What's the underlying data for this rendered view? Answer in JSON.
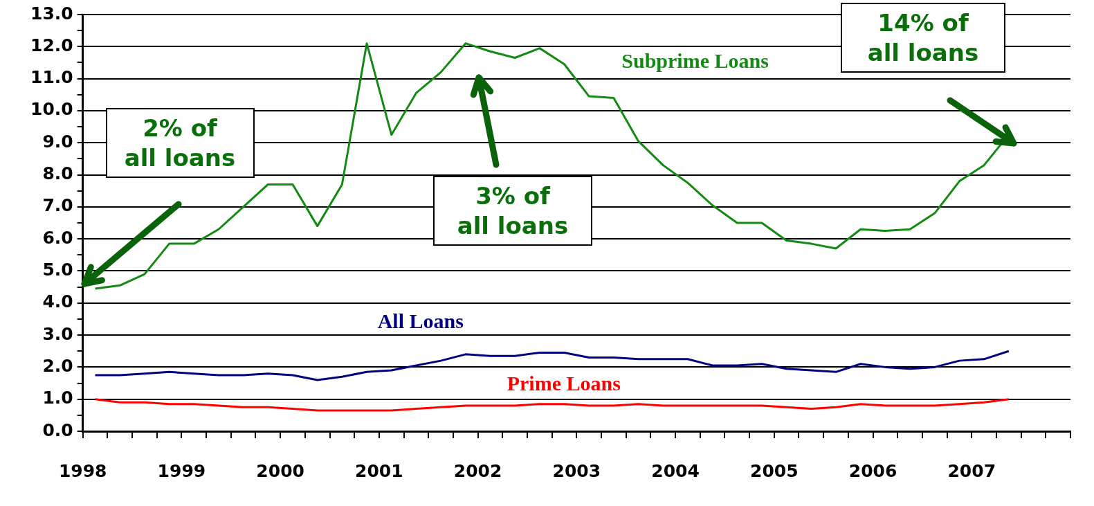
{
  "chart_data": {
    "type": "line",
    "x": [
      1998.125,
      1998.375,
      1998.625,
      1998.875,
      1999.125,
      1999.375,
      1999.625,
      1999.875,
      2000.125,
      2000.375,
      2000.625,
      2000.875,
      2001.125,
      2001.375,
      2001.625,
      2001.875,
      2002.125,
      2002.375,
      2002.625,
      2002.875,
      2003.125,
      2003.375,
      2003.625,
      2003.875,
      2004.125,
      2004.375,
      2004.625,
      2004.875,
      2005.125,
      2005.375,
      2005.625,
      2005.875,
      2006.125,
      2006.375,
      2006.625,
      2006.875,
      2007.125,
      2007.375
    ],
    "series": [
      {
        "name": "Subprime Loans",
        "color": "#138a13",
        "values": [
          4.45,
          4.55,
          4.9,
          5.85,
          5.85,
          6.3,
          7.0,
          7.7,
          7.7,
          6.4,
          7.7,
          12.1,
          9.25,
          10.55,
          11.2,
          12.1,
          11.85,
          11.65,
          11.95,
          11.45,
          10.45,
          10.4,
          9.05,
          8.3,
          7.75,
          7.05,
          6.5,
          6.5,
          5.95,
          5.85,
          5.7,
          6.3,
          6.25,
          6.3,
          6.8,
          7.8,
          8.3,
          9.25
        ]
      },
      {
        "name": "All Loans",
        "color": "#000080",
        "values": [
          1.75,
          1.75,
          1.8,
          1.85,
          1.8,
          1.75,
          1.75,
          1.8,
          1.75,
          1.6,
          1.7,
          1.85,
          1.9,
          2.05,
          2.2,
          2.4,
          2.35,
          2.35,
          2.45,
          2.45,
          2.3,
          2.3,
          2.25,
          2.25,
          2.25,
          2.05,
          2.05,
          2.1,
          1.95,
          1.9,
          1.85,
          2.1,
          2.0,
          1.95,
          2.0,
          2.2,
          2.25,
          2.5
        ]
      },
      {
        "name": "Prime Loans",
        "color": "#ff0000",
        "values": [
          1.0,
          0.9,
          0.9,
          0.85,
          0.85,
          0.8,
          0.75,
          0.75,
          0.7,
          0.65,
          0.65,
          0.65,
          0.65,
          0.7,
          0.75,
          0.8,
          0.8,
          0.8,
          0.85,
          0.85,
          0.8,
          0.8,
          0.85,
          0.8,
          0.8,
          0.8,
          0.8,
          0.8,
          0.75,
          0.7,
          0.75,
          0.85,
          0.8,
          0.8,
          0.8,
          0.85,
          0.9,
          1.0
        ]
      }
    ],
    "xlim": [
      1998,
      2008
    ],
    "xticks": [
      1998,
      {
        "value": 1998.25,
        "label": null
      },
      {
        "value": 1998.5,
        "label": null
      },
      {
        "value": 1998.75,
        "label": null
      },
      1999,
      {
        "value": 1999.25,
        "label": null
      },
      {
        "value": 1999.5,
        "label": null
      },
      {
        "value": 1999.75,
        "label": null
      },
      2000,
      {
        "value": 2000.25,
        "label": null
      },
      {
        "value": 2000.5,
        "label": null
      },
      {
        "value": 2000.75,
        "label": null
      },
      2001,
      {
        "value": 2001.25,
        "label": null
      },
      {
        "value": 2001.5,
        "label": null
      },
      {
        "value": 2001.75,
        "label": null
      },
      2002,
      {
        "value": 2002.25,
        "label": null
      },
      {
        "value": 2002.5,
        "label": null
      },
      {
        "value": 2002.75,
        "label": null
      },
      2003,
      {
        "value": 2003.25,
        "label": null
      },
      {
        "value": 2003.5,
        "label": null
      },
      {
        "value": 2003.75,
        "label": null
      },
      2004,
      {
        "value": 2004.25,
        "label": null
      },
      {
        "value": 2004.5,
        "label": null
      },
      {
        "value": 2004.75,
        "label": null
      },
      2005,
      {
        "value": 2005.25,
        "label": null
      },
      {
        "value": 2005.5,
        "label": null
      },
      {
        "value": 2005.75,
        "label": null
      },
      2006,
      {
        "value": 2006.25,
        "label": null
      },
      {
        "value": 2006.5,
        "label": null
      },
      {
        "value": 2006.75,
        "label": null
      },
      2007,
      {
        "value": 2007.25,
        "label": null
      },
      {
        "value": 2007.5,
        "label": null
      },
      {
        "value": 2007.75,
        "label": null
      },
      {
        "value": 2008,
        "label": null
      }
    ],
    "ylim": [
      0,
      13
    ],
    "yticks": [
      {
        "value": 0,
        "label": "0.0"
      },
      {
        "value": 0.5,
        "label": null
      },
      {
        "value": 1,
        "label": "1.0"
      },
      {
        "value": 1.5,
        "label": null
      },
      {
        "value": 2,
        "label": "2.0"
      },
      {
        "value": 2.5,
        "label": null
      },
      {
        "value": 3,
        "label": "3.0"
      },
      {
        "value": 3.5,
        "label": null
      },
      {
        "value": 4,
        "label": "4.0"
      },
      {
        "value": 4.5,
        "label": null
      },
      {
        "value": 5,
        "label": "5.0"
      },
      {
        "value": 5.5,
        "label": null
      },
      {
        "value": 6,
        "label": "6.0"
      },
      {
        "value": 6.5,
        "label": null
      },
      {
        "value": 7,
        "label": "7.0"
      },
      {
        "value": 7.5,
        "label": null
      },
      {
        "value": 8,
        "label": "8.0"
      },
      {
        "value": 8.5,
        "label": null
      },
      {
        "value": 9,
        "label": "9.0"
      },
      {
        "value": 9.5,
        "label": null
      },
      {
        "value": 10,
        "label": "10.0"
      },
      {
        "value": 10.5,
        "label": null
      },
      {
        "value": 11,
        "label": "11.0"
      },
      {
        "value": 11.5,
        "label": null
      },
      {
        "value": 12,
        "label": "12.0"
      },
      {
        "value": 12.5,
        "label": null
      },
      {
        "value": 13,
        "label": "13.0"
      }
    ],
    "grid": "y",
    "legend": false,
    "line_style": "solid",
    "marker": "none",
    "annotations": [
      "2% of\nall loans",
      "3% of\nall loans",
      "14% of\nall loans"
    ]
  }
}
